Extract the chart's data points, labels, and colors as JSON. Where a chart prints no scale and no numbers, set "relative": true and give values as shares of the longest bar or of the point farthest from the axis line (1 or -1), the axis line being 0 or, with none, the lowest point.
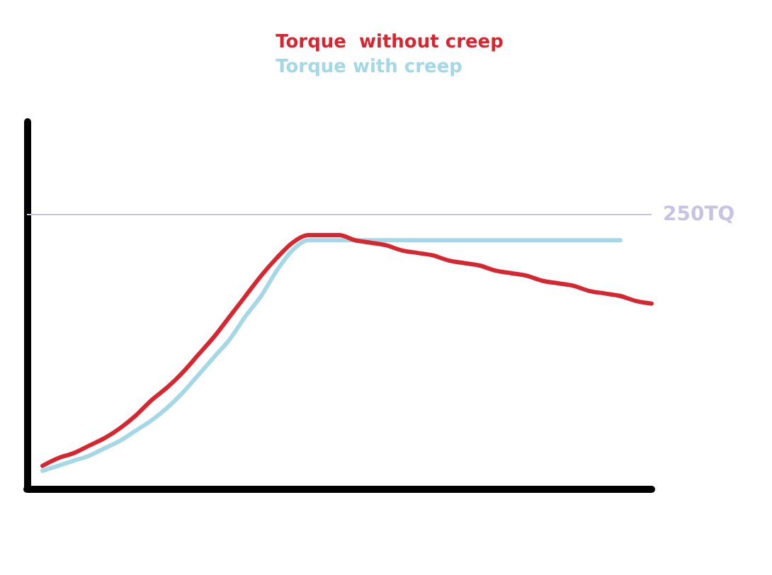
{
  "chart_data": {
    "type": "line",
    "relative": true,
    "legend": "top",
    "categories": [
      null,
      null,
      null,
      null,
      null,
      null,
      null,
      null,
      null,
      null,
      null,
      null,
      null,
      null,
      null,
      null,
      null,
      null,
      null,
      null,
      null,
      null,
      null,
      null,
      null,
      null,
      null,
      null,
      null,
      null,
      null,
      null,
      null,
      null,
      null,
      null,
      null,
      null,
      null,
      null,
      null
    ],
    "series": [
      {
        "name": "Torque  without creep",
        "color": "#d7262f",
        "values": [
          null,
          0.09,
          0.12,
          0.14,
          0.17,
          0.2,
          0.24,
          0.29,
          0.35,
          0.4,
          0.46,
          0.53,
          0.6,
          0.68,
          0.76,
          0.84,
          0.91,
          0.97,
          1,
          1,
          1,
          0.98,
          0.97,
          0.96,
          0.94,
          0.93,
          0.92,
          0.9,
          0.89,
          0.88,
          0.86,
          0.85,
          0.84,
          0.82,
          0.81,
          0.8,
          0.78,
          0.77,
          0.76,
          0.74,
          0.73
        ]
      },
      {
        "name": "Torque with creep",
        "color": "#a5d8e6",
        "values": [
          null,
          0.07,
          0.09,
          0.11,
          0.13,
          0.16,
          0.19,
          0.23,
          0.27,
          0.32,
          0.38,
          0.45,
          0.52,
          0.59,
          0.68,
          0.76,
          0.86,
          0.94,
          0.98,
          0.98,
          0.98,
          0.98,
          0.98,
          0.98,
          0.98,
          0.98,
          0.98,
          0.98,
          0.98,
          0.98,
          0.98,
          0.98,
          0.98,
          0.98,
          0.98,
          0.98,
          0.98,
          0.98,
          0.98,
          null,
          null
        ]
      }
    ],
    "ref_lines": [
      {
        "axis": "y",
        "value": 1.08,
        "label": "250TQ",
        "color": "#c9c3e3"
      }
    ]
  }
}
